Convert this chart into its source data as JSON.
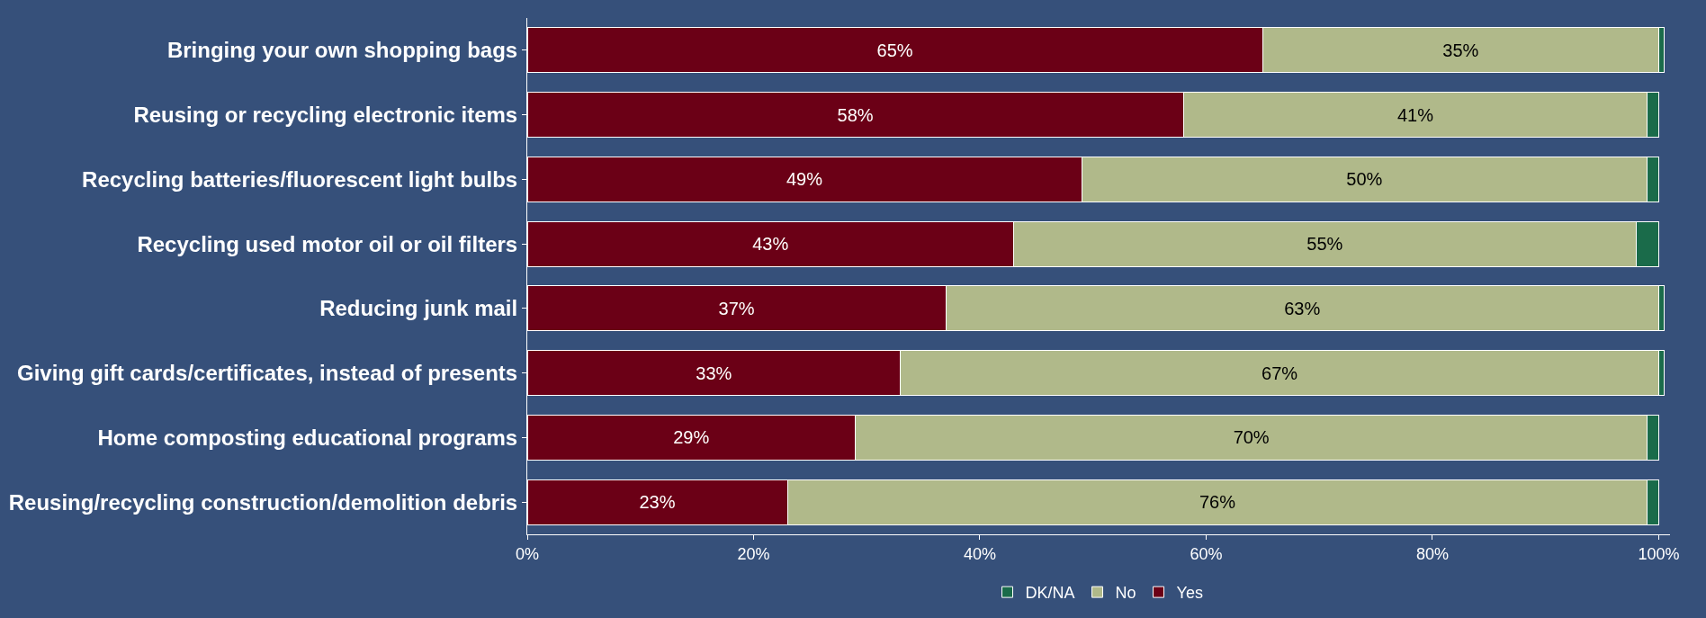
{
  "chart_data": {
    "type": "bar",
    "orientation": "horizontal",
    "stacked": true,
    "categories": [
      "Bringing your own shopping bags",
      "Reusing or recycling electronic items",
      "Recycling batteries/fluorescent light bulbs",
      "Recycling used motor oil or oil filters",
      "Reducing junk mail",
      "Giving gift cards/certificates, instead of presents",
      "Home composting educational programs",
      "Reusing/recycling construction/demolition debris"
    ],
    "series": [
      {
        "name": "Yes",
        "color": "#6b0016",
        "values": [
          65,
          58,
          49,
          43,
          37,
          33,
          29,
          23
        ],
        "value_labels": [
          "65%",
          "58%",
          "49%",
          "43%",
          "37%",
          "33%",
          "29%",
          "23%"
        ]
      },
      {
        "name": "No",
        "color": "#b0b98a",
        "values": [
          35,
          41,
          50,
          55,
          63,
          67,
          70,
          76
        ],
        "value_labels": [
          "35%",
          "41%",
          "50%",
          "55%",
          "63%",
          "67%",
          "70%",
          "76%"
        ]
      },
      {
        "name": "DK/NA",
        "color": "#1a6b4a",
        "values": [
          0.5,
          1,
          1,
          2,
          0.5,
          0.5,
          1,
          1
        ]
      }
    ],
    "xlim": [
      0,
      101
    ],
    "xticks": [
      {
        "value": 0,
        "label": "0%"
      },
      {
        "value": 20,
        "label": "20%"
      },
      {
        "value": 40,
        "label": "40%"
      },
      {
        "value": 60,
        "label": "60%"
      },
      {
        "value": 80,
        "label": "80%"
      },
      {
        "value": 100,
        "label": "100%"
      }
    ],
    "legend": "bottom",
    "grid": false
  }
}
